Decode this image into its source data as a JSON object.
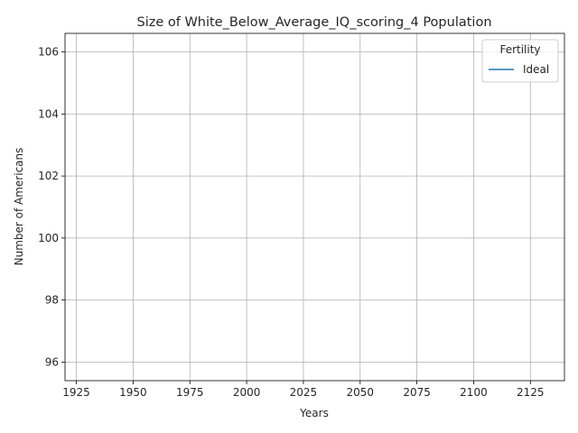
{
  "chart_data": {
    "type": "line",
    "title": "Size of White_Below_Average_IQ_scoring_4 Population",
    "xlabel": "Years",
    "ylabel": "Number of Americans",
    "xlim": [
      1920,
      2140
    ],
    "ylim": [
      95.4,
      106.6
    ],
    "x_ticks": [
      "1925",
      "1950",
      "1975",
      "2000",
      "2025",
      "2050",
      "2075",
      "2100",
      "2125"
    ],
    "y_ticks": [
      "96",
      "98",
      "100",
      "102",
      "104",
      "106"
    ],
    "grid": true,
    "legend": {
      "title": "Fertility",
      "placement": "top-right"
    },
    "series": [
      {
        "name": "Ideal",
        "color": "#1f77b4",
        "x": [],
        "y": []
      }
    ]
  }
}
